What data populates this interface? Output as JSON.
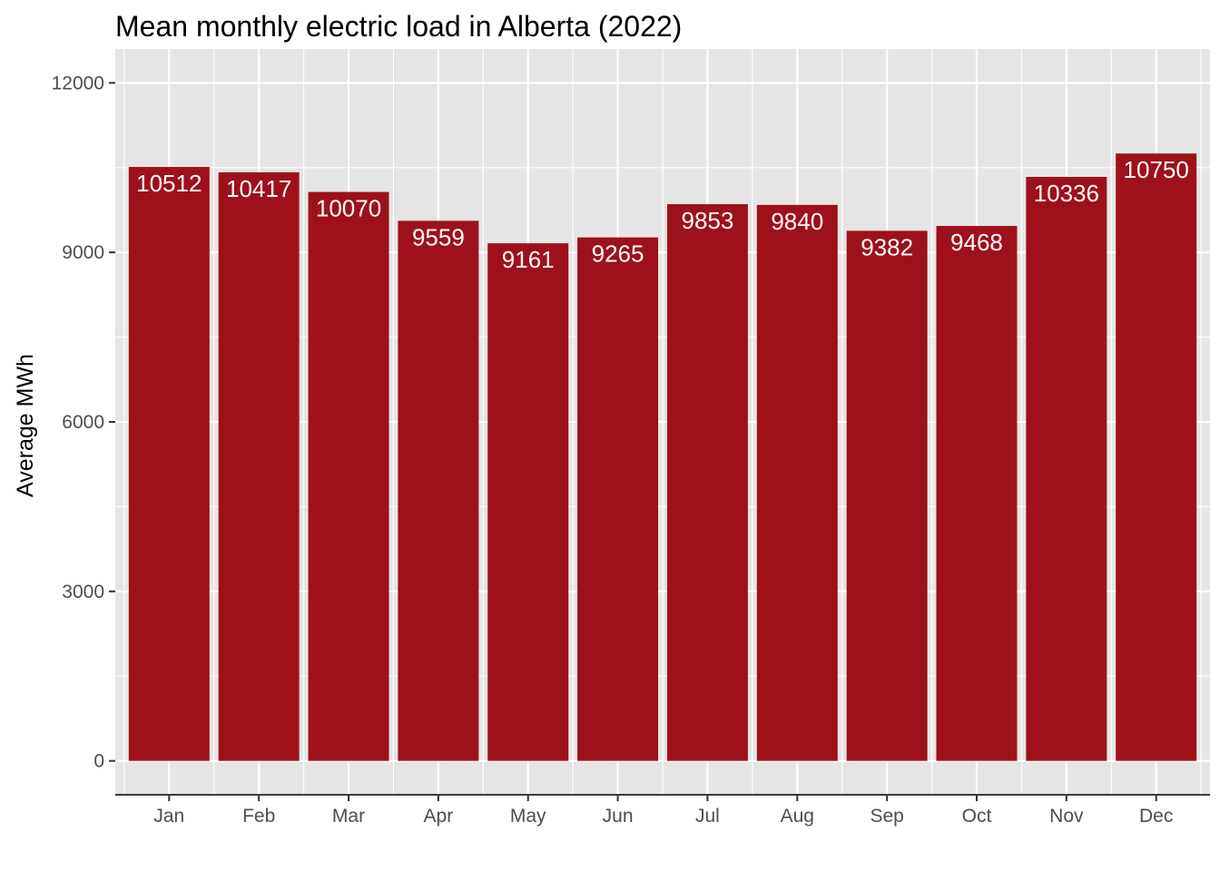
{
  "chart_data": {
    "type": "bar",
    "title": "Mean monthly electric load in Alberta (2022)",
    "xlabel": "",
    "ylabel": "Average MWh",
    "categories": [
      "Jan",
      "Feb",
      "Mar",
      "Apr",
      "May",
      "Jun",
      "Jul",
      "Aug",
      "Sep",
      "Oct",
      "Nov",
      "Dec"
    ],
    "values": [
      10512,
      10417,
      10070,
      9559,
      9161,
      9265,
      9853,
      9840,
      9382,
      9468,
      10336,
      10750
    ],
    "data_labels": [
      "10512",
      "10417",
      "10070",
      "9559",
      "9161",
      "9265",
      "9853",
      "9840",
      "9382",
      "9468",
      "10336",
      "10750"
    ],
    "ylim": [
      0,
      12000
    ],
    "yticks": [
      0,
      3000,
      6000,
      9000,
      12000
    ],
    "ytick_labels": [
      "0",
      "3000",
      "6000",
      "9000",
      "12000"
    ],
    "grid": true,
    "legend": "none",
    "colors": {
      "bar": "#9e111a",
      "panel": "#e5e5e5",
      "grid": "#ffffff",
      "tick_text": "#4d4d4d",
      "bar_label": "#ffffff"
    }
  }
}
